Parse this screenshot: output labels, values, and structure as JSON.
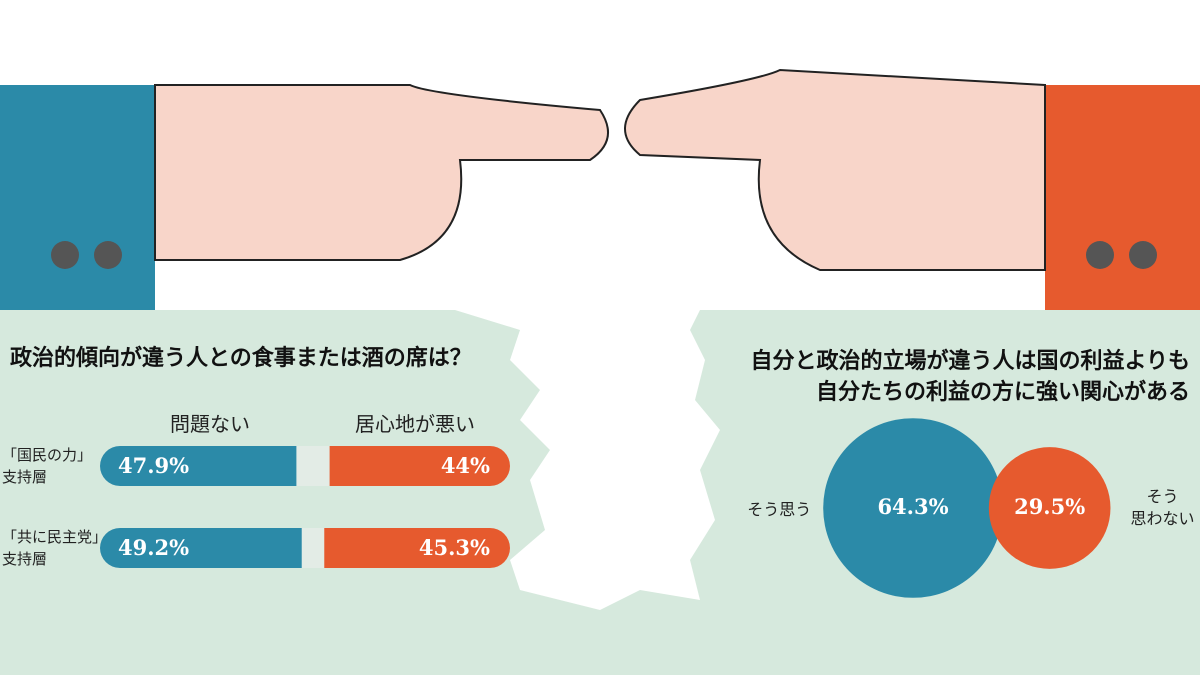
{
  "chart_data": [
    {
      "type": "bar",
      "title": "政治的傾向が違う人との食事または酒の席は？",
      "categories": [
        "「国民の力」\n支持層",
        "「共に民主党」\n支持層"
      ],
      "xlim": [
        0,
        100
      ],
      "series": [
        {
          "name": "問題ない",
          "color": "#2b8aa8",
          "values": [
            47.9,
            49.2
          ],
          "value_labels": [
            "47.9%",
            "49.2%"
          ]
        },
        {
          "name": "居心地が悪い",
          "color": "#e65a2e",
          "values": [
            44,
            45.3
          ],
          "value_labels": [
            "44%",
            "45.3%"
          ]
        }
      ]
    },
    {
      "type": "bubble",
      "title": "自分と政治的立場が違う人は国の利益よりも\n自分たちの利益の方に強い関心がある",
      "categories": [
        "そう思う",
        "そう\n思わない"
      ],
      "values": [
        64.3,
        29.5
      ],
      "value_labels": [
        "64.3%",
        "29.5%"
      ],
      "colors": [
        "#2b8aa8",
        "#e65a2e"
      ]
    }
  ]
}
